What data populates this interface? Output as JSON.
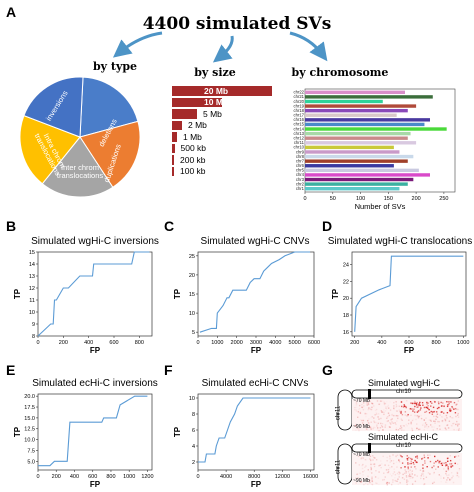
{
  "figure": {
    "title": "4400 simulated SVs",
    "panels": [
      "A",
      "B",
      "C",
      "D",
      "E",
      "F",
      "G"
    ],
    "sections": {
      "type": "by type",
      "size": "by size",
      "chrom": "by chromosome"
    },
    "colors": {
      "size_bar": "#a52a2a",
      "line": "#5b9bd5",
      "arrow": "#4d94c6"
    }
  },
  "chart_data": [
    {
      "id": "by-type",
      "type": "pie",
      "slices": [
        {
          "label": "deletions",
          "value": 20,
          "color": "#4a7dc9"
        },
        {
          "label": "duplications",
          "value": 20,
          "color": "#ec7d31"
        },
        {
          "label": "Inter chrom translocations",
          "value": 20,
          "color": "#a5a5a5"
        },
        {
          "label": "Intra chrom translocations",
          "value": 20,
          "color": "#ffc000"
        },
        {
          "label": "inversions",
          "value": 20,
          "color": "#4472c4"
        }
      ]
    },
    {
      "id": "by-size",
      "type": "bar",
      "categories": [
        "20 Mb",
        "10 Mb",
        "5 Mb",
        "2 Mb",
        "1 Mb",
        "500 kb",
        "200 kb",
        "100 kb"
      ],
      "values": [
        100,
        50,
        25,
        10,
        5,
        2.5,
        1,
        0.5
      ]
    },
    {
      "id": "by-chromosome",
      "type": "bar",
      "orientation": "horizontal",
      "categories": [
        "chr22",
        "chr21",
        "chr20",
        "chr19",
        "chr18",
        "chr17",
        "chr16",
        "chr15",
        "chr14",
        "chr13",
        "chr12",
        "chr11",
        "chr10",
        "chr9",
        "chr8",
        "chr7",
        "chr6",
        "chr5",
        "chr4",
        "chr3",
        "chr2",
        "chr1"
      ],
      "values": [
        180,
        230,
        140,
        200,
        185,
        165,
        225,
        215,
        255,
        190,
        185,
        200,
        160,
        170,
        195,
        185,
        160,
        205,
        225,
        195,
        185,
        170
      ],
      "colors": [
        "#d98ec9",
        "#3b6e3b",
        "#2fd39a",
        "#b04a3a",
        "#8a4ab8",
        "#d9c9c9",
        "#4a3aa0",
        "#4a8ac9",
        "#4ad93a",
        "#a8d9a8",
        "#c98a8a",
        "#d9c9e0",
        "#c9c93a",
        "#c99ac9",
        "#c9d9ea",
        "#a0402a",
        "#3a3aa0",
        "#c9c9e0",
        "#d94ac9",
        "#7a1a7a",
        "#3ab0a0",
        "#5ac9c9"
      ],
      "xlabel": "Number of SVs",
      "xticks": [
        0,
        50,
        100,
        150,
        200,
        250
      ],
      "xlim": [
        0,
        270
      ]
    },
    {
      "id": "B",
      "type": "line",
      "title": "Simulated wgHi-C inversions",
      "xlabel": "FP",
      "ylabel": "TP",
      "xlim": [
        0,
        900
      ],
      "ylim": [
        8,
        15
      ],
      "xticks": [
        0,
        200,
        400,
        600,
        800
      ],
      "yticks": [
        8,
        9,
        10,
        11,
        12,
        13,
        14,
        15
      ],
      "x": [
        0,
        100,
        120,
        130,
        145,
        200,
        240,
        330,
        430,
        440,
        560,
        600,
        740,
        760,
        880
      ],
      "y": [
        8,
        9,
        9,
        11,
        11,
        12,
        12,
        13,
        13,
        14,
        14,
        14,
        14,
        15,
        15
      ]
    },
    {
      "id": "C",
      "type": "line",
      "title": "Simulated  wgHi-C CNVs",
      "xlabel": "FP",
      "ylabel": "TP",
      "xlim": [
        0,
        6000
      ],
      "ylim": [
        4,
        26
      ],
      "xticks": [
        0,
        1000,
        2000,
        3000,
        4000,
        5000,
        6000
      ],
      "yticks": [
        5,
        10,
        15,
        20,
        25
      ],
      "x": [
        100,
        700,
        950,
        1000,
        1150,
        1300,
        1500,
        1600,
        1800,
        2500,
        2700,
        2900,
        3200,
        3400,
        3600,
        3800,
        4200,
        4500,
        5000,
        5800
      ],
      "y": [
        5,
        6,
        6,
        10,
        11,
        12,
        14,
        14,
        16,
        16,
        18,
        19,
        19,
        21,
        22,
        23,
        24,
        25,
        26,
        26
      ]
    },
    {
      "id": "D",
      "type": "line",
      "title": "Simulated wgHi-C translocations",
      "xlabel": "FP",
      "ylabel": "TP",
      "xlim": [
        180,
        1020
      ],
      "ylim": [
        15.5,
        25.5
      ],
      "xticks": [
        200,
        400,
        600,
        800,
        1000
      ],
      "yticks": [
        16,
        18,
        20,
        22,
        24
      ],
      "x": [
        200,
        210,
        250,
        380,
        460,
        470,
        1000
      ],
      "y": [
        16,
        19,
        20,
        21,
        21.5,
        25,
        25
      ]
    },
    {
      "id": "E",
      "type": "line",
      "title": "Simulated ecHi-C inversions",
      "xlabel": "FP",
      "ylabel": "TP",
      "xlim": [
        0,
        1250
      ],
      "ylim": [
        3,
        20.5
      ],
      "xticks": [
        0,
        200,
        400,
        600,
        800,
        1000,
        1200
      ],
      "yticks": [
        5.0,
        7.5,
        10.0,
        12.5,
        15.0,
        17.5,
        20.0
      ],
      "x": [
        0,
        130,
        180,
        320,
        350,
        700,
        720,
        860,
        900,
        1060,
        1200
      ],
      "y": [
        4,
        4,
        5,
        5,
        14,
        14,
        15,
        15,
        18,
        20,
        20
      ]
    },
    {
      "id": "F",
      "type": "line",
      "title": "Simulated ecHi-C CNVs",
      "xlabel": "FP",
      "ylabel": "TP",
      "xlim": [
        0,
        16500
      ],
      "ylim": [
        1,
        10.5
      ],
      "xticks": [
        0,
        4000,
        8000,
        12000,
        16000
      ],
      "yticks": [
        2,
        4,
        6,
        8,
        10
      ],
      "x": [
        0,
        1000,
        1200,
        2400,
        2600,
        3000,
        3800,
        4200,
        4600,
        5200,
        5600,
        6400,
        16000
      ],
      "y": [
        2,
        2,
        3,
        3,
        4,
        5,
        5,
        6,
        7,
        8,
        9,
        10,
        10
      ]
    }
  ],
  "hic": {
    "panel1": {
      "title": "Simulated wgHi-C",
      "chr_label": "chr10",
      "side_label": "chr11",
      "mb_top": "~70 Mb",
      "mb_bottom": "~90 Mb"
    },
    "panel2": {
      "title": "Simulated ecHi-C",
      "chr_label": "chr10",
      "side_label": "chr11",
      "mb_top": "~70 Mb",
      "mb_bottom": "~90 Mb"
    }
  }
}
